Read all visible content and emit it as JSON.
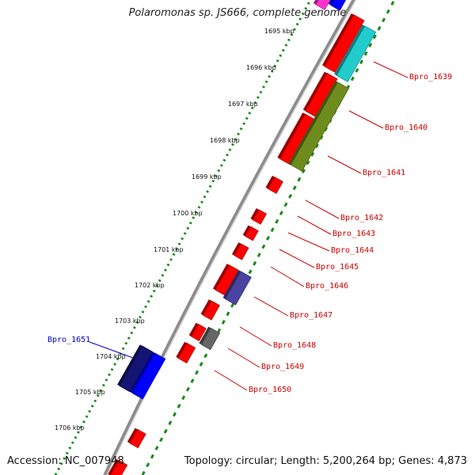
{
  "title": "Polaromonas sp. JS666, complete genome",
  "footer": {
    "accession": "Accession: NC_007948",
    "summary": "Topology: circular; Length: 5,200,264 bp; Genes: 4,873"
  },
  "ruler_labels": [
    "1695 kbp",
    "1696 kbp",
    "1697 kbp",
    "1698 kbp",
    "1699 kbp",
    "1700 kbp",
    "1701 kbp",
    "1702 kbp",
    "1703 kbp",
    "1704 kbp",
    "1705 kbp",
    "1706 kbp"
  ],
  "gene_labels": [
    {
      "text": "Bpro_1639",
      "color": "#cc0000"
    },
    {
      "text": "Bpro_1640",
      "color": "#cc0000"
    },
    {
      "text": "Bpro_1641",
      "color": "#cc0000"
    },
    {
      "text": "Bpro_1642",
      "color": "#cc0000"
    },
    {
      "text": "Bpro_1643",
      "color": "#cc0000"
    },
    {
      "text": "Bpro_1644",
      "color": "#cc0000"
    },
    {
      "text": "Bpro_1645",
      "color": "#cc0000"
    },
    {
      "text": "Bpro_1646",
      "color": "#cc0000"
    },
    {
      "text": "Bpro_1647",
      "color": "#cc0000"
    },
    {
      "text": "Bpro_1648",
      "color": "#cc0000"
    },
    {
      "text": "Bpro_1649",
      "color": "#cc0000"
    },
    {
      "text": "Bpro_1650",
      "color": "#cc0000"
    },
    {
      "text": "Bpro_1651",
      "color": "#0000cc"
    }
  ],
  "colors": {
    "backbone": "#8c8c8c",
    "ruler_dots": "#1a8a1a",
    "cds_red": "#ff0000",
    "cds_cyan": "#22cccc",
    "cds_olive": "#6e8c1e",
    "cds_purple": "#4a44a0",
    "cds_gray": "#666666",
    "cds_navy": "#141474",
    "cds_blue": "#0000ff",
    "cds_magenta": "#ff33cc"
  }
}
